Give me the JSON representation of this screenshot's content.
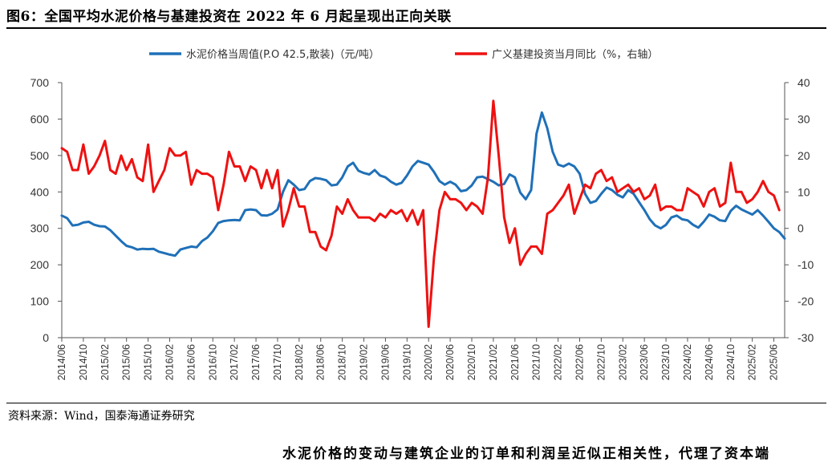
{
  "title": "图6：全国平均水泥价格与基建投资在 2022 年 6 月起呈现出正向关联",
  "source": "资料来源：Wind，国泰海通证券研究",
  "bottom_text": "水泥价格的变动与建筑企业的订单和利润呈近似正相关性，代理了资本端",
  "colors": {
    "series1": "#1f70b8",
    "series2": "#ee1111"
  },
  "chart_data": {
    "type": "line",
    "left_axis": {
      "ylim": [
        0,
        700
      ],
      "ticks": [
        "0",
        "100",
        "200",
        "300",
        "400",
        "500",
        "600",
        "700"
      ]
    },
    "right_axis": {
      "ylim": [
        -30,
        40
      ],
      "ticks": [
        "-30",
        "-20",
        "-10",
        "0",
        "10",
        "20",
        "30",
        "40"
      ]
    },
    "x_range": [
      "2014/06",
      "2025/08"
    ],
    "x_ticks": [
      "2014/06",
      "2014/10",
      "2015/02",
      "2015/06",
      "2015/10",
      "2016/02",
      "2016/06",
      "2016/10",
      "2017/02",
      "2017/06",
      "2017/10",
      "2018/02",
      "2018/06",
      "2018/10",
      "2019/02",
      "2019/06",
      "2019/10",
      "2020/02",
      "2020/06",
      "2020/10",
      "2021/02",
      "2021/06",
      "2021/10",
      "2022/02",
      "2022/06",
      "2022/10",
      "2023/02",
      "2023/06",
      "2023/10",
      "2024/02",
      "2024/06",
      "2024/10",
      "2025/02",
      "2025/06"
    ],
    "legend_position": "top-center",
    "series": [
      {
        "name": "水泥价格当周值(P.O 42.5,散装)（元/吨）",
        "axis": "left",
        "points": [
          [
            "2014/06",
            335
          ],
          [
            "2014/07",
            328
          ],
          [
            "2014/08",
            308
          ],
          [
            "2014/09",
            310
          ],
          [
            "2014/10",
            316
          ],
          [
            "2014/11",
            318
          ],
          [
            "2014/12",
            310
          ],
          [
            "2015/01",
            306
          ],
          [
            "2015/02",
            305
          ],
          [
            "2015/03",
            295
          ],
          [
            "2015/04",
            280
          ],
          [
            "2015/05",
            265
          ],
          [
            "2015/06",
            252
          ],
          [
            "2015/07",
            248
          ],
          [
            "2015/08",
            242
          ],
          [
            "2015/09",
            244
          ],
          [
            "2015/10",
            243
          ],
          [
            "2015/11",
            244
          ],
          [
            "2015/12",
            236
          ],
          [
            "2016/01",
            232
          ],
          [
            "2016/02",
            228
          ],
          [
            "2016/03",
            225
          ],
          [
            "2016/04",
            242
          ],
          [
            "2016/05",
            246
          ],
          [
            "2016/06",
            250
          ],
          [
            "2016/07",
            248
          ],
          [
            "2016/08",
            265
          ],
          [
            "2016/09",
            275
          ],
          [
            "2016/10",
            292
          ],
          [
            "2016/11",
            315
          ],
          [
            "2016/12",
            320
          ],
          [
            "2017/01",
            322
          ],
          [
            "2017/02",
            323
          ],
          [
            "2017/03",
            322
          ],
          [
            "2017/04",
            350
          ],
          [
            "2017/05",
            352
          ],
          [
            "2017/06",
            350
          ],
          [
            "2017/07",
            336
          ],
          [
            "2017/08",
            335
          ],
          [
            "2017/09",
            340
          ],
          [
            "2017/10",
            352
          ],
          [
            "2017/11",
            400
          ],
          [
            "2017/12",
            432
          ],
          [
            "2018/01",
            420
          ],
          [
            "2018/02",
            405
          ],
          [
            "2018/03",
            408
          ],
          [
            "2018/04",
            430
          ],
          [
            "2018/05",
            438
          ],
          [
            "2018/06",
            436
          ],
          [
            "2018/07",
            432
          ],
          [
            "2018/08",
            418
          ],
          [
            "2018/09",
            420
          ],
          [
            "2018/10",
            440
          ],
          [
            "2018/11",
            470
          ],
          [
            "2018/12",
            480
          ],
          [
            "2019/01",
            458
          ],
          [
            "2019/02",
            452
          ],
          [
            "2019/03",
            448
          ],
          [
            "2019/04",
            460
          ],
          [
            "2019/05",
            445
          ],
          [
            "2019/06",
            440
          ],
          [
            "2019/07",
            428
          ],
          [
            "2019/08",
            420
          ],
          [
            "2019/09",
            425
          ],
          [
            "2019/10",
            445
          ],
          [
            "2019/11",
            470
          ],
          [
            "2019/12",
            485
          ],
          [
            "2020/01",
            480
          ],
          [
            "2020/02",
            475
          ],
          [
            "2020/03",
            455
          ],
          [
            "2020/04",
            430
          ],
          [
            "2020/05",
            420
          ],
          [
            "2020/06",
            428
          ],
          [
            "2020/07",
            420
          ],
          [
            "2020/08",
            402
          ],
          [
            "2020/09",
            405
          ],
          [
            "2020/10",
            418
          ],
          [
            "2020/11",
            440
          ],
          [
            "2020/12",
            442
          ],
          [
            "2021/01",
            435
          ],
          [
            "2021/02",
            428
          ],
          [
            "2021/03",
            418
          ],
          [
            "2021/04",
            422
          ],
          [
            "2021/05",
            448
          ],
          [
            "2021/06",
            440
          ],
          [
            "2021/07",
            398
          ],
          [
            "2021/08",
            380
          ],
          [
            "2021/09",
            405
          ],
          [
            "2021/10",
            560
          ],
          [
            "2021/11",
            618
          ],
          [
            "2021/12",
            575
          ],
          [
            "2022/01",
            510
          ],
          [
            "2022/02",
            475
          ],
          [
            "2022/03",
            470
          ],
          [
            "2022/04",
            478
          ],
          [
            "2022/05",
            470
          ],
          [
            "2022/06",
            450
          ],
          [
            "2022/07",
            395
          ],
          [
            "2022/08",
            370
          ],
          [
            "2022/09",
            375
          ],
          [
            "2022/10",
            395
          ],
          [
            "2022/11",
            412
          ],
          [
            "2022/12",
            405
          ],
          [
            "2023/01",
            392
          ],
          [
            "2023/02",
            385
          ],
          [
            "2023/03",
            405
          ],
          [
            "2023/04",
            395
          ],
          [
            "2023/05",
            372
          ],
          [
            "2023/06",
            350
          ],
          [
            "2023/07",
            325
          ],
          [
            "2023/08",
            308
          ],
          [
            "2023/09",
            300
          ],
          [
            "2023/10",
            310
          ],
          [
            "2023/11",
            330
          ],
          [
            "2023/12",
            335
          ],
          [
            "2024/01",
            325
          ],
          [
            "2024/02",
            322
          ],
          [
            "2024/03",
            310
          ],
          [
            "2024/04",
            302
          ],
          [
            "2024/05",
            318
          ],
          [
            "2024/06",
            338
          ],
          [
            "2024/07",
            332
          ],
          [
            "2024/08",
            322
          ],
          [
            "2024/09",
            320
          ],
          [
            "2024/10",
            348
          ],
          [
            "2024/11",
            362
          ],
          [
            "2024/12",
            352
          ],
          [
            "2025/01",
            345
          ],
          [
            "2025/02",
            338
          ],
          [
            "2025/03",
            350
          ],
          [
            "2025/04",
            335
          ],
          [
            "2025/05",
            318
          ],
          [
            "2025/06",
            300
          ],
          [
            "2025/07",
            290
          ],
          [
            "2025/08",
            272
          ]
        ]
      },
      {
        "name": "广义基建投资当月同比（%，右轴）",
        "axis": "right",
        "points": [
          [
            "2014/06",
            22
          ],
          [
            "2014/07",
            21
          ],
          [
            "2014/08",
            16
          ],
          [
            "2014/09",
            16
          ],
          [
            "2014/10",
            23
          ],
          [
            "2014/11",
            15
          ],
          [
            "2014/12",
            17
          ],
          [
            "2015/01",
            20
          ],
          [
            "2015/02",
            24
          ],
          [
            "2015/03",
            16
          ],
          [
            "2015/04",
            15
          ],
          [
            "2015/05",
            20
          ],
          [
            "2015/06",
            16
          ],
          [
            "2015/07",
            19
          ],
          [
            "2015/08",
            14
          ],
          [
            "2015/09",
            13
          ],
          [
            "2015/10",
            23
          ],
          [
            "2015/11",
            10
          ],
          [
            "2015/12",
            13
          ],
          [
            "2016/01",
            16
          ],
          [
            "2016/02",
            22
          ],
          [
            "2016/03",
            20
          ],
          [
            "2016/04",
            20
          ],
          [
            "2016/05",
            21
          ],
          [
            "2016/06",
            12
          ],
          [
            "2016/07",
            16
          ],
          [
            "2016/08",
            15
          ],
          [
            "2016/09",
            15
          ],
          [
            "2016/10",
            14
          ],
          [
            "2016/11",
            5
          ],
          [
            "2016/12",
            12
          ],
          [
            "2017/01",
            21
          ],
          [
            "2017/02",
            17
          ],
          [
            "2017/03",
            17
          ],
          [
            "2017/04",
            13
          ],
          [
            "2017/05",
            17
          ],
          [
            "2017/06",
            16
          ],
          [
            "2017/07",
            11
          ],
          [
            "2017/08",
            16
          ],
          [
            "2017/09",
            11
          ],
          [
            "2017/10",
            16
          ],
          [
            "2017/11",
            0.5
          ],
          [
            "2017/12",
            5
          ],
          [
            "2018/01",
            11
          ],
          [
            "2018/02",
            6
          ],
          [
            "2018/03",
            6
          ],
          [
            "2018/04",
            -1
          ],
          [
            "2018/05",
            -1
          ],
          [
            "2018/06",
            -5
          ],
          [
            "2018/07",
            -6
          ],
          [
            "2018/08",
            -2
          ],
          [
            "2018/09",
            6
          ],
          [
            "2018/10",
            4
          ],
          [
            "2018/11",
            8
          ],
          [
            "2018/12",
            5
          ],
          [
            "2019/01",
            3
          ],
          [
            "2019/02",
            3
          ],
          [
            "2019/03",
            3
          ],
          [
            "2019/04",
            2
          ],
          [
            "2019/05",
            4
          ],
          [
            "2019/06",
            3
          ],
          [
            "2019/07",
            5
          ],
          [
            "2019/08",
            4
          ],
          [
            "2019/09",
            5
          ],
          [
            "2019/10",
            2
          ],
          [
            "2019/11",
            5
          ],
          [
            "2019/12",
            1
          ],
          [
            "2020/01",
            5
          ],
          [
            "2020/02",
            -27
          ],
          [
            "2020/03",
            -8
          ],
          [
            "2020/04",
            5
          ],
          [
            "2020/05",
            10
          ],
          [
            "2020/06",
            8
          ],
          [
            "2020/07",
            8
          ],
          [
            "2020/08",
            7
          ],
          [
            "2020/09",
            5
          ],
          [
            "2020/10",
            7
          ],
          [
            "2020/11",
            6
          ],
          [
            "2020/12",
            4
          ],
          [
            "2021/01",
            14
          ],
          [
            "2021/02",
            35
          ],
          [
            "2021/03",
            20
          ],
          [
            "2021/04",
            3
          ],
          [
            "2021/05",
            -4
          ],
          [
            "2021/06",
            0
          ],
          [
            "2021/07",
            -10
          ],
          [
            "2021/08",
            -7
          ],
          [
            "2021/09",
            -5
          ],
          [
            "2021/10",
            -5
          ],
          [
            "2021/11",
            -7
          ],
          [
            "2021/12",
            4
          ],
          [
            "2022/01",
            5
          ],
          [
            "2022/02",
            7
          ],
          [
            "2022/03",
            9
          ],
          [
            "2022/04",
            12
          ],
          [
            "2022/05",
            4
          ],
          [
            "2022/06",
            8
          ],
          [
            "2022/07",
            12
          ],
          [
            "2022/08",
            11
          ],
          [
            "2022/09",
            15
          ],
          [
            "2022/10",
            16
          ],
          [
            "2022/11",
            13
          ],
          [
            "2022/12",
            14
          ],
          [
            "2023/01",
            10
          ],
          [
            "2023/02",
            11
          ],
          [
            "2023/03",
            12
          ],
          [
            "2023/04",
            10
          ],
          [
            "2023/05",
            11
          ],
          [
            "2023/06",
            8
          ],
          [
            "2023/07",
            9
          ],
          [
            "2023/08",
            12
          ],
          [
            "2023/09",
            5
          ],
          [
            "2023/10",
            6
          ],
          [
            "2023/11",
            6
          ],
          [
            "2023/12",
            5
          ],
          [
            "2024/01",
            5
          ],
          [
            "2024/02",
            11
          ],
          [
            "2024/03",
            10
          ],
          [
            "2024/04",
            9
          ],
          [
            "2024/05",
            6
          ],
          [
            "2024/06",
            10
          ],
          [
            "2024/07",
            11
          ],
          [
            "2024/08",
            6
          ],
          [
            "2024/09",
            7
          ],
          [
            "2024/10",
            18
          ],
          [
            "2024/11",
            10
          ],
          [
            "2024/12",
            10
          ],
          [
            "2025/01",
            7
          ],
          [
            "2025/02",
            8
          ],
          [
            "2025/03",
            10
          ],
          [
            "2025/04",
            13
          ],
          [
            "2025/05",
            10
          ],
          [
            "2025/06",
            9
          ],
          [
            "2025/07",
            5
          ]
        ]
      }
    ]
  }
}
